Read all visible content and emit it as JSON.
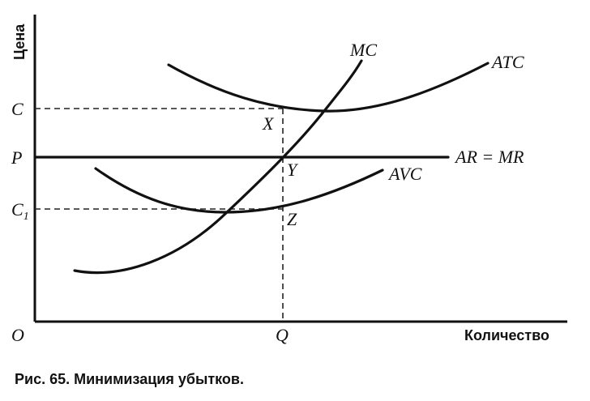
{
  "diagram": {
    "y_axis_title": "Цена",
    "x_axis_title": "Количество",
    "origin_label": "O",
    "price_labels": {
      "c": "C",
      "p": "P",
      "c1_main": "C",
      "c1_sub": "1"
    },
    "quantity_label": "Q",
    "curve_labels": {
      "mc": "MC",
      "atc": "ATC",
      "ar_mr": "AR = MR",
      "avc": "AVC"
    },
    "point_labels": {
      "x": "X",
      "y": "Y",
      "z": "Z"
    }
  },
  "caption": "Рис. 65. Минимизация убытков."
}
